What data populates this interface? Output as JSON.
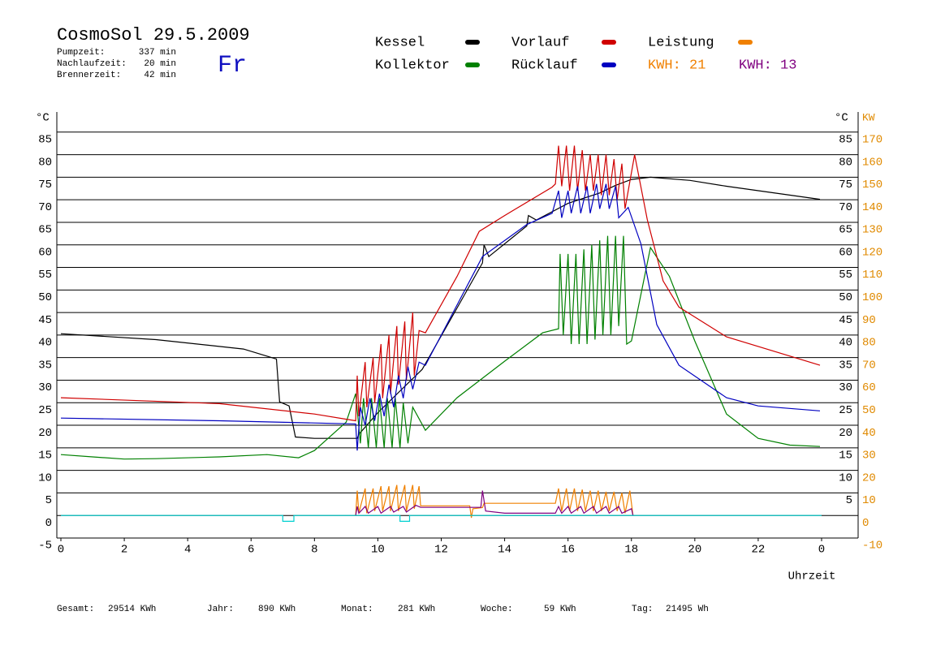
{
  "header": {
    "title": "CosmoSol 29.5.2009",
    "stats": [
      {
        "label": "Pumpzeit:",
        "value": "337 min"
      },
      {
        "label": "Nachlaufzeit:",
        "value": "20 min"
      },
      {
        "label": "Brennerzeit:",
        "value": "42 min"
      }
    ],
    "weekday": "Fr"
  },
  "chart_data": {
    "type": "line",
    "ylabel": "°C",
    "y2label": "KW",
    "xlabel": "Uhrzeit",
    "xlim": [
      0,
      24
    ],
    "xticks": [
      0,
      2,
      4,
      6,
      8,
      10,
      12,
      14,
      16,
      18,
      20,
      22,
      {
        "value": 24,
        "label": "0"
      }
    ],
    "ylim": [
      -5,
      90
    ],
    "yticks": [
      -5,
      0,
      5,
      10,
      15,
      20,
      25,
      30,
      35,
      40,
      45,
      50,
      55,
      60,
      65,
      70,
      75,
      80,
      85
    ],
    "y2lim": [
      -10,
      180
    ],
    "y2ticks": [
      -10,
      0,
      10,
      20,
      30,
      40,
      50,
      60,
      70,
      80,
      90,
      100,
      110,
      120,
      130,
      140,
      150,
      160,
      170
    ],
    "y2color": "#e08a00",
    "grid": true,
    "series": [
      {
        "name": "Kessel",
        "color": "#000000",
        "x": [
          0,
          3,
          5.76,
          6.8,
          6.9,
          7.2,
          7.4,
          8,
          9.35,
          9.4,
          10,
          11.4,
          12.5,
          13.3,
          13.35,
          13.5,
          14.7,
          14.75,
          15,
          16,
          17,
          17.5,
          18,
          18.6,
          19.85,
          21,
          23.95
        ],
        "values": [
          40.3,
          39,
          36.9,
          34.7,
          25.2,
          24.3,
          17.4,
          17.1,
          17.1,
          18,
          22.8,
          32.4,
          46,
          56,
          60,
          57.4,
          64.2,
          66.5,
          65.5,
          69.2,
          71.5,
          73.2,
          74.5,
          75,
          74.3,
          73,
          70.1
        ]
      },
      {
        "name": "Kollektor",
        "color": "#008000",
        "x": [
          0,
          1,
          2,
          3,
          5,
          6.5,
          7.5,
          8,
          9,
          9.3,
          9.45,
          9.55,
          9.7,
          9.8,
          9.95,
          10.05,
          10.2,
          10.3,
          10.45,
          10.55,
          10.7,
          10.8,
          10.95,
          11.1,
          11.5,
          12.5,
          14,
          15.2,
          15.7,
          15.75,
          15.85,
          16,
          16.1,
          16.25,
          16.35,
          16.5,
          16.6,
          16.75,
          16.85,
          17,
          17.1,
          17.25,
          17.35,
          17.5,
          17.6,
          17.75,
          17.85,
          18,
          18.6,
          19.2,
          20,
          21,
          22,
          23,
          23.95
        ],
        "values": [
          13.5,
          13,
          12.5,
          12.6,
          13,
          13.5,
          12.8,
          14.4,
          20.7,
          27,
          16,
          26,
          15,
          26,
          15,
          26,
          15,
          26,
          15,
          26,
          15,
          25,
          16,
          24,
          18.9,
          26.1,
          34.2,
          40.5,
          41.4,
          58,
          40,
          58,
          38,
          58,
          38,
          59,
          38,
          60,
          39,
          61,
          40,
          62,
          40,
          62,
          42,
          62,
          38,
          38.7,
          59.4,
          53,
          38.7,
          22.5,
          17.1,
          15.6,
          15.3
        ]
      },
      {
        "name": "Vorlauf",
        "color": "#d00000",
        "x": [
          0,
          5,
          8,
          9.3,
          9.35,
          9.4,
          9.6,
          9.65,
          9.85,
          9.9,
          10.1,
          10.15,
          10.35,
          10.4,
          10.6,
          10.65,
          10.85,
          10.9,
          11.1,
          11.15,
          11.3,
          11.5,
          12.5,
          13.2,
          14,
          15.5,
          15.6,
          15.7,
          15.8,
          15.95,
          16.05,
          16.2,
          16.3,
          16.45,
          16.55,
          16.7,
          16.8,
          16.95,
          17.05,
          17.2,
          17.3,
          17.45,
          17.55,
          17.7,
          17.8,
          17.95,
          18.1,
          18.5,
          19,
          19.5,
          21,
          23.95
        ],
        "values": [
          26.1,
          24.8,
          22.5,
          21,
          31,
          22,
          34,
          24,
          35,
          25,
          38,
          26,
          40,
          27,
          42,
          29,
          43,
          30,
          45,
          31,
          41,
          40.5,
          53,
          63,
          66.5,
          72.8,
          73.5,
          82,
          73,
          82,
          72,
          82,
          72,
          81,
          72,
          80,
          72,
          80,
          71,
          80,
          71,
          79,
          70,
          78,
          68,
          74,
          80,
          65.6,
          52,
          46.2,
          39.6,
          33.3
        ]
      },
      {
        "name": "Rücklauf",
        "color": "#0000c0",
        "x": [
          0,
          5,
          9.3,
          9.35,
          9.45,
          9.6,
          9.75,
          9.9,
          10.05,
          10.2,
          10.35,
          10.5,
          10.65,
          10.8,
          10.95,
          11.1,
          11.3,
          11.5,
          13.3,
          14.7,
          15.5,
          15.7,
          15.8,
          16,
          16.1,
          16.3,
          16.4,
          16.6,
          16.7,
          16.9,
          17,
          17.2,
          17.3,
          17.5,
          17.6,
          17.9,
          18.3,
          18.8,
          19.5,
          21,
          22,
          23.95
        ],
        "values": [
          21.6,
          21,
          20.3,
          14.4,
          24,
          20,
          26,
          21,
          27,
          22,
          29,
          24,
          31,
          26,
          33,
          28,
          34,
          33.3,
          57.4,
          64.5,
          67,
          72,
          66,
          72,
          67,
          73,
          67,
          73,
          67,
          73.5,
          68,
          73.5,
          68,
          73,
          66,
          68.3,
          60.2,
          42.3,
          33.3,
          26.1,
          24.3,
          23.2
        ]
      },
      {
        "name": "Leistung",
        "color": "#f08000",
        "axis": "y2",
        "x": [
          9.3,
          9.35,
          9.4,
          9.6,
          9.65,
          9.85,
          9.9,
          10.1,
          10.15,
          10.35,
          10.4,
          10.6,
          10.65,
          10.85,
          10.9,
          11.1,
          11.15,
          11.3,
          11.35,
          12.9,
          12.95,
          13,
          13.3,
          13.35,
          15.6,
          15.7,
          15.8,
          15.95,
          16.05,
          16.2,
          16.3,
          16.45,
          16.55,
          16.7,
          16.8,
          16.95,
          17.05,
          17.2,
          17.3,
          17.45,
          17.55,
          17.7,
          17.8,
          17.95,
          18.05
        ],
        "values": [
          0,
          11,
          1,
          12,
          1,
          12,
          2,
          13,
          2,
          13,
          2,
          13.5,
          2,
          13.5,
          2,
          13.5,
          3,
          13,
          4.3,
          4.3,
          -1,
          3,
          3.5,
          5.4,
          5.4,
          12,
          2,
          12,
          2,
          12,
          2,
          11.5,
          2,
          11,
          2,
          11,
          2,
          10.5,
          2,
          10.5,
          2,
          10,
          1,
          11,
          0
        ]
      },
      {
        "color": "#800080",
        "axis": "y2",
        "x": [
          9.3,
          9.35,
          9.4,
          9.6,
          9.7,
          10,
          10.1,
          10.4,
          10.5,
          10.8,
          10.9,
          11.2,
          11.35,
          13.25,
          13.3,
          13.4,
          14,
          15.6,
          15.7,
          15.8,
          16,
          16.1,
          16.4,
          16.5,
          16.8,
          16.9,
          17.2,
          17.3,
          17.6,
          17.7,
          18,
          18.05
        ],
        "values": [
          0,
          4,
          1,
          4,
          1,
          4,
          1,
          4,
          1.5,
          4,
          1.5,
          4.5,
          3.6,
          3.6,
          11,
          2,
          1,
          1,
          4,
          1,
          4,
          1,
          4,
          1,
          4,
          1,
          4,
          1,
          4,
          1,
          3,
          0
        ]
      },
      {
        "color": "#00d0d0",
        "x": [
          0,
          7,
          7,
          7.35,
          7.35,
          10.7,
          10.7,
          11,
          11,
          24
        ],
        "values": [
          0,
          0,
          -1.3,
          -1.3,
          0,
          0,
          -1.3,
          -1.3,
          0,
          0
        ]
      }
    ],
    "kwh": [
      {
        "label": "KWH: 21",
        "color": "#f08000"
      },
      {
        "label": "KWH: 13",
        "color": "#800080"
      }
    ]
  },
  "footer": [
    {
      "label": "Gesamt:",
      "value": "29514 KWh"
    },
    {
      "label": "Jahr:",
      "value": "890 KWh"
    },
    {
      "label": "Monat:",
      "value": "281 KWh"
    },
    {
      "label": "Woche:",
      "value": "59 KWh"
    },
    {
      "label": "Tag:",
      "value": "21495 Wh"
    }
  ]
}
